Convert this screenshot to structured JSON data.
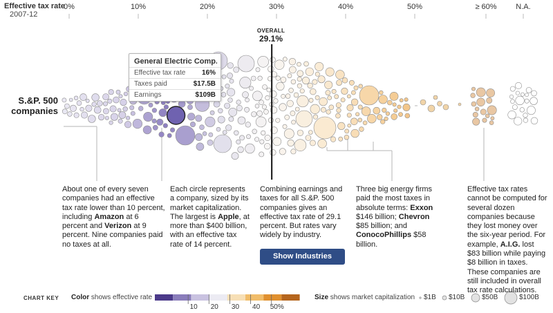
{
  "axis": {
    "title": "Effective tax rate",
    "subtitle": "2007-12",
    "ticks": [
      "0%",
      "10%",
      "20%",
      "30%",
      "40%",
      "50%",
      "≥ 60%",
      "N.A."
    ]
  },
  "overall": {
    "label": "OVERALL",
    "value": "29.1%"
  },
  "row_label": {
    "line1": "S.&P. 500",
    "line2": "companies"
  },
  "tooltip": {
    "title": "General Electric Comp...",
    "rows": [
      {
        "label": "Effective tax rate",
        "value": "16%"
      },
      {
        "label": "Taxes paid",
        "value": "$17.5B"
      },
      {
        "label": "Earnings",
        "value": "$109B"
      }
    ]
  },
  "annotations": {
    "low_rates": {
      "t1": "About one of every seven companies had an effective tax rate lower than 10 percent, including ",
      "b1": "Amazon",
      "t2": " at 6 percent and ",
      "b2": "Verizon",
      "t3": " at 9 percent. Nine companies paid no taxes at all."
    },
    "circles": {
      "t1": "Each circle represents a company, sized by its market capitalization. The largest is ",
      "b1": "Apple",
      "t2": ", at more than $400 billion, with an effective tax rate of 14 percent."
    },
    "overall": {
      "t1": "Combining earnings and taxes for all S.&P. 500 companies gives an effective tax rate of 29.1 percent. But rates vary widely by industry."
    },
    "energy": {
      "t1": "Three big energy firms paid the most taxes in absolute terms: ",
      "b1": "Exxon",
      "t2": " $146 billion; ",
      "b2": "Chevron",
      "t3": " $85 billion; and ",
      "b3": "ConocoPhillips",
      "t4": " $58 billion."
    },
    "na": {
      "t1": "Effective tax rates cannot be computed for several dozen companies because they lost money over the six-year period. For example, ",
      "b1": "A.I.G.",
      "t2": " lost $83 billion while paying $8 billion in taxes. These companies are still included in overall tax rate calculations."
    }
  },
  "button": {
    "label": "Show Industries"
  },
  "chart_key": {
    "title": "CHART KEY",
    "color_bold": "Color",
    "color_text": " shows effective rate",
    "color_ticks": [
      "10",
      "20",
      "30",
      "40",
      "50%"
    ],
    "color_swatches": [
      "#4b3a8a",
      "#8a7dbb",
      "#c9c2e0",
      "#ecebf3",
      "#f7dfb6",
      "#f1bd6a",
      "#e0902f",
      "#b5651d"
    ],
    "size_bold": "Size",
    "size_text": " shows market capitalization",
    "size_items": [
      "$1B",
      "$10B",
      "$50B",
      "$100B"
    ]
  },
  "chart_data": {
    "type": "scatter",
    "title": "Effective tax rate",
    "xlabel": "2007-12",
    "x_range": [
      0,
      60
    ],
    "x_ticks": [
      "0%",
      "10%",
      "20%",
      "30%",
      "40%",
      "50%",
      "≥ 60%",
      "N.A."
    ],
    "overall_rate": 29.1,
    "series": [
      {
        "name": "S.&P. 500 companies"
      }
    ],
    "highlighted": [
      {
        "company": "General Electric Comp...",
        "effective_tax_rate": 16,
        "taxes_paid_billion": 17.5,
        "earnings_billion": 109
      }
    ],
    "annotated_companies": [
      {
        "company": "Amazon",
        "effective_tax_rate": 6
      },
      {
        "company": "Verizon",
        "effective_tax_rate": 9
      },
      {
        "company": "Apple",
        "effective_tax_rate": 14,
        "market_cap_billion_over": 400
      },
      {
        "company": "Exxon",
        "taxes_paid_billion": 146
      },
      {
        "company": "Chevron",
        "taxes_paid_billion": 85
      },
      {
        "company": "ConocoPhillips",
        "taxes_paid_billion": 58
      },
      {
        "company": "A.I.G.",
        "loss_billion": 83,
        "taxes_paid_billion": 8
      }
    ]
  }
}
